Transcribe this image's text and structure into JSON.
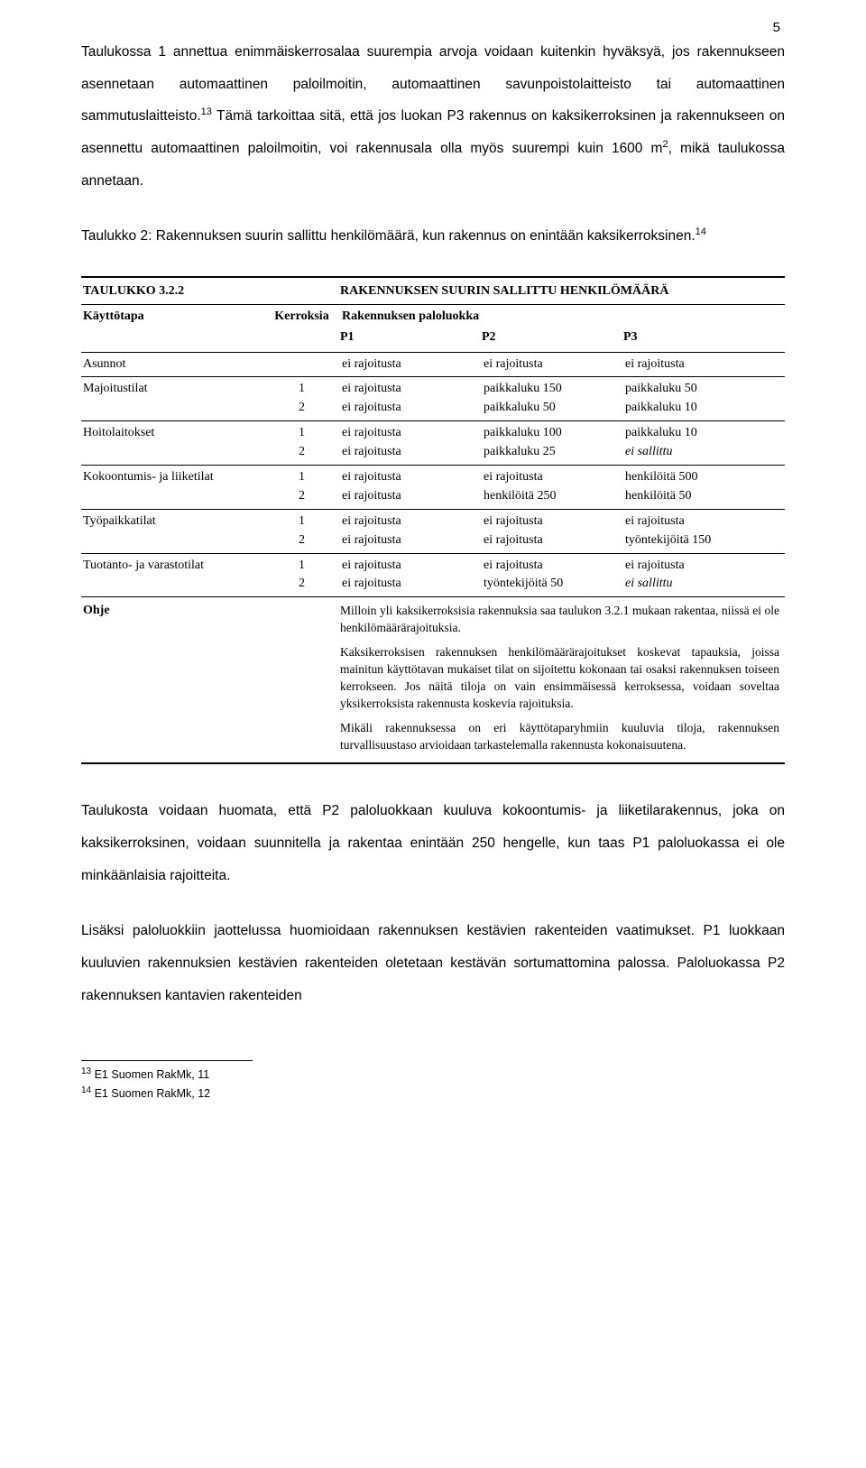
{
  "page_number": "5",
  "para1_a": "Taulukossa 1 annettua enimmäiskerrosalaa suurempia arvoja voidaan kuitenkin hyväksyä, jos rakennukseen asennetaan automaattinen paloilmoitin, automaattinen savunpoistolaitteisto tai automaattinen sammutuslaitteisto.",
  "para1_sup": "13",
  "para1_b": " Tämä tarkoittaa sitä, että jos luokan P3 rakennus on kaksikerroksinen ja rakennukseen on asennettu automaattinen paloilmoitin, voi rakennusala olla myös suurempi kuin 1600 m",
  "para1_sup2": "2",
  "para1_c": ", mikä taulukossa annetaan.",
  "para2_a": "Taulukko 2: Rakennuksen suurin sallittu henkilömäärä, kun rakennus on enintään kaksikerroksinen.",
  "para2_sup": "14",
  "table": {
    "title_left": "TAULUKKO 3.2.2",
    "title_right": "RAKENNUKSEN SUURIN SALLITTU HENKILÖMÄÄRÄ",
    "head_kayttotapa": "Käyttötapa",
    "head_kerroksia": "Kerroksia",
    "head_paloluokka": "Rakennuksen paloluokka",
    "p1": "P1",
    "p2": "P2",
    "p3": "P3",
    "rows": [
      {
        "name": "Asunnot",
        "lines": [
          {
            "k": "",
            "p1": "ei rajoitusta",
            "p2": "ei rajoitusta",
            "p3": "ei rajoitusta"
          }
        ]
      },
      {
        "name": "Majoitustilat",
        "lines": [
          {
            "k": "1",
            "p1": "ei rajoitusta",
            "p2": "paikkaluku 150",
            "p3": "paikkaluku 50"
          },
          {
            "k": "2",
            "p1": "ei rajoitusta",
            "p2": "paikkaluku 50",
            "p3": "paikkaluku 10"
          }
        ]
      },
      {
        "name": "Hoitolaitokset",
        "lines": [
          {
            "k": "1",
            "p1": "ei rajoitusta",
            "p2": "paikkaluku 100",
            "p3": "paikkaluku 10"
          },
          {
            "k": "2",
            "p1": "ei rajoitusta",
            "p2": "paikkaluku 25",
            "p3": "ei sallittu",
            "p3_italic": true
          }
        ]
      },
      {
        "name": "Kokoontumis- ja liiketilat",
        "lines": [
          {
            "k": "1",
            "p1": "ei rajoitusta",
            "p2": "ei rajoitusta",
            "p3": "henkilöitä 500"
          },
          {
            "k": "2",
            "p1": "ei rajoitusta",
            "p2": "henkilöitä 250",
            "p3": "henkilöitä 50"
          }
        ]
      },
      {
        "name": "Työpaikkatilat",
        "lines": [
          {
            "k": "1",
            "p1": "ei rajoitusta",
            "p2": "ei rajoitusta",
            "p3": "ei rajoitusta"
          },
          {
            "k": "2",
            "p1": "ei rajoitusta",
            "p2": "ei rajoitusta",
            "p3": "työntekijöitä 150"
          }
        ]
      },
      {
        "name": "Tuotanto- ja varastotilat",
        "lines": [
          {
            "k": "1",
            "p1": "ei rajoitusta",
            "p2": "ei rajoitusta",
            "p3": "ei rajoitusta"
          },
          {
            "k": "2",
            "p1": "ei rajoitusta",
            "p2": "työntekijöitä 50",
            "p3": "ei sallittu",
            "p3_italic": true
          }
        ]
      }
    ],
    "ohje_label": "Ohje",
    "ohje_p1": "Milloin yli kaksikerroksisia rakennuksia saa taulukon 3.2.1 mukaan rakentaa, niissä ei ole henkilömäärärajoituksia.",
    "ohje_p2": "Kaksikerroksisen rakennuksen henkilömäärärajoitukset koskevat tapauksia, joissa mainitun käyttötavan mukaiset tilat on sijoitettu kokonaan tai osaksi rakennuksen toiseen kerrokseen. Jos näitä tiloja on vain ensimmäisessä kerroksessa, voidaan soveltaa yksikerroksista rakennusta koskevia rajoituksia.",
    "ohje_p3": "Mikäli rakennuksessa on eri käyttötaparyhmiin kuuluvia tiloja, rakennuksen turvallisuustaso arvioidaan tarkastelemalla rakennusta kokonaisuutena."
  },
  "para3": "Taulukosta voidaan huomata, että P2 paloluokkaan kuuluva kokoontumis- ja liiketilarakennus, joka on kaksikerroksinen, voidaan suunnitella ja rakentaa enintään 250 hengelle, kun taas P1 paloluokassa ei ole minkäänlaisia rajoitteita.",
  "para4": "Lisäksi paloluokkiin jaottelussa huomioidaan rakennuksen kestävien rakenteiden vaatimukset. P1 luokkaan kuuluvien rakennuksien kestävien rakenteiden oletetaan kestävän sortumattomina palossa. Paloluokassa P2 rakennuksen kantavien rakenteiden",
  "footnotes": {
    "fn1_sup": "13",
    "fn1": " E1 Suomen RakMk, 11",
    "fn2_sup": "14",
    "fn2": " E1 Suomen RakMk, 12"
  }
}
